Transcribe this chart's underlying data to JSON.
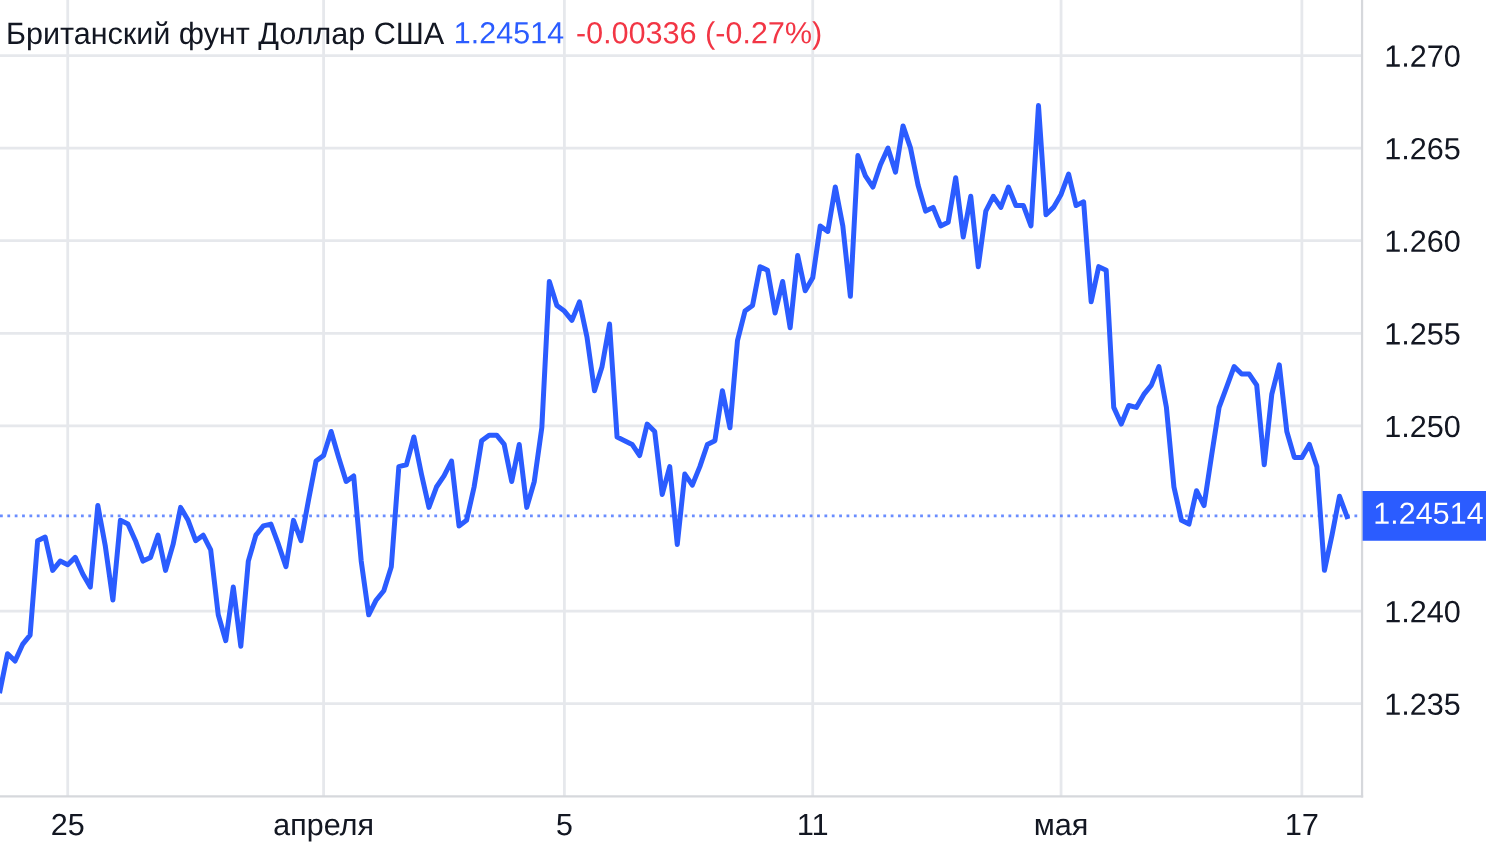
{
  "chart_data": {
    "type": "line",
    "title": "Британский фунт Доллар США",
    "annotations": [
      "1.24514",
      "-0.00336 (-0.27%)"
    ],
    "categories": [
      null,
      null,
      null,
      null,
      null,
      null,
      null,
      null,
      null,
      "25",
      null,
      null,
      null,
      null,
      null,
      null,
      null,
      null,
      null,
      null,
      null,
      null,
      null,
      null,
      null,
      null,
      null,
      null,
      null,
      null,
      null,
      null,
      null,
      null,
      null,
      null,
      null,
      null,
      null,
      null,
      null,
      null,
      null,
      "апреля",
      null,
      null,
      null,
      null,
      null,
      null,
      null,
      null,
      null,
      null,
      null,
      null,
      null,
      null,
      null,
      null,
      null,
      null,
      null,
      null,
      null,
      null,
      null,
      null,
      null,
      null,
      null,
      null,
      null,
      null,
      null,
      "5",
      null,
      null,
      null,
      null,
      null,
      null,
      null,
      null,
      null,
      null,
      null,
      null,
      null,
      null,
      null,
      null,
      null,
      null,
      null,
      null,
      null,
      null,
      null,
      null,
      null,
      null,
      null,
      null,
      null,
      null,
      null,
      null,
      "11",
      null,
      null,
      null,
      null,
      null,
      null,
      null,
      null,
      null,
      null,
      null,
      null,
      null,
      null,
      null,
      null,
      null,
      null,
      null,
      null,
      null,
      null,
      null,
      null,
      null,
      null,
      null,
      null,
      null,
      null,
      null,
      null,
      "мая",
      null,
      null,
      null,
      null,
      null,
      null,
      null,
      null,
      null,
      null,
      null,
      null,
      null,
      null,
      null,
      null,
      null,
      null,
      null,
      null,
      null,
      null,
      null,
      null,
      null,
      null,
      null,
      null,
      null,
      null,
      null,
      "17",
      null,
      null,
      null,
      null,
      null,
      null
    ],
    "series": [
      {
        "color": "#2b5cff",
        "values": [
          1.2357,
          1.2377,
          1.2373,
          1.2382,
          1.2387,
          1.2438,
          1.244,
          1.2422,
          1.2427,
          1.2425,
          1.2429,
          1.242,
          1.2413,
          1.2457,
          1.2435,
          1.2406,
          1.2449,
          1.2447,
          1.2438,
          1.2427,
          1.2429,
          1.2441,
          1.2422,
          1.2436,
          1.2456,
          1.2449,
          1.2438,
          1.2441,
          1.2433,
          1.2398,
          1.2384,
          1.2413,
          1.2381,
          1.2427,
          1.2441,
          1.2446,
          1.2447,
          1.2436,
          1.2424,
          1.2449,
          1.2438,
          1.246,
          1.2481,
          1.2484,
          1.2497,
          1.2483,
          1.247,
          1.2473,
          1.2427,
          1.2398,
          1.2406,
          1.2411,
          1.2424,
          1.2478,
          1.2479,
          1.2494,
          1.2474,
          1.2456,
          1.2467,
          1.2473,
          1.2481,
          1.2446,
          1.2449,
          1.2467,
          1.2492,
          1.2495,
          1.2495,
          1.249,
          1.247,
          1.249,
          1.2456,
          1.247,
          1.2499,
          1.2578,
          1.2565,
          1.2562,
          1.2557,
          1.2567,
          1.2548,
          1.2519,
          1.2532,
          1.2555,
          1.2494,
          1.2492,
          1.249,
          1.2484,
          1.2501,
          1.2497,
          1.2463,
          1.2478,
          1.2436,
          1.2474,
          1.2468,
          1.2478,
          1.249,
          1.2492,
          1.2519,
          1.2499,
          1.2546,
          1.2562,
          1.2565,
          1.2586,
          1.2584,
          1.2561,
          1.2578,
          1.2553,
          1.2592,
          1.2573,
          1.258,
          1.2608,
          1.2605,
          1.2629,
          1.2608,
          1.257,
          1.2646,
          1.2635,
          1.2629,
          1.2641,
          1.265,
          1.2637,
          1.2662,
          1.265,
          1.263,
          1.2616,
          1.2618,
          1.2608,
          1.261,
          1.2634,
          1.2602,
          1.2624,
          1.2586,
          1.2616,
          1.2624,
          1.2618,
          1.2629,
          1.2619,
          1.2619,
          1.2608,
          1.2673,
          1.2614,
          1.2618,
          1.2625,
          1.2636,
          1.2619,
          1.2621,
          1.2567,
          1.2586,
          1.2584,
          1.251,
          1.2501,
          1.2511,
          1.251,
          1.2517,
          1.2522,
          1.2532,
          1.251,
          1.2467,
          1.2449,
          1.2447,
          1.2465,
          1.2457,
          1.2484,
          1.251,
          1.2521,
          1.2532,
          1.2528,
          1.2528,
          1.2522,
          1.2479,
          1.2517,
          1.2533,
          1.2497,
          1.2483,
          1.2483,
          1.249,
          1.2478,
          1.2422,
          1.2441,
          1.2462,
          1.2451
        ]
      }
    ],
    "ylim": [
      1.23,
      1.273
    ],
    "yticks": [
      {
        "value": 1.235,
        "label": "1.235"
      },
      {
        "value": 1.24,
        "label": "1.240"
      },
      {
        "value": 1.25,
        "label": "1.250"
      },
      {
        "value": 1.255,
        "label": "1.255"
      },
      {
        "value": 1.26,
        "label": "1.260"
      },
      {
        "value": 1.265,
        "label": "1.265"
      },
      {
        "value": 1.27,
        "label": "1.270"
      }
    ],
    "ref_lines": [
      {
        "axis": "y",
        "value": 1.24514,
        "label": "1.24514",
        "color": "#2b5cff",
        "line_style": "dotted"
      }
    ],
    "grid": true,
    "legend": false,
    "marker": "none",
    "line_style": "solid"
  }
}
